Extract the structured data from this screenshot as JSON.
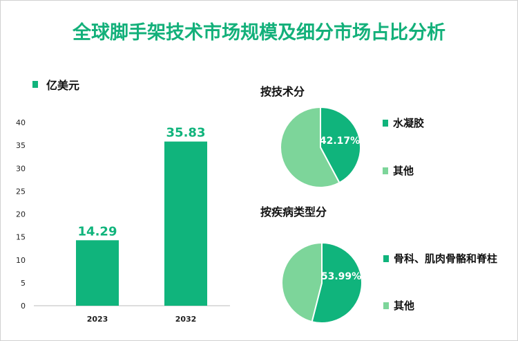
{
  "title": "全球脚手架技术市场规模及细分市场占比分析",
  "colors": {
    "primary": "#10b47c",
    "secondary": "#7dd59a",
    "title": "#13b07a"
  },
  "chart_data": [
    {
      "type": "bar",
      "legend": "亿美元",
      "categories": [
        "2023",
        "2032"
      ],
      "values": [
        14.29,
        35.83
      ],
      "value_labels": [
        "14.29",
        "35.83"
      ],
      "ylim": [
        0,
        40
      ],
      "yticks": [
        "0",
        "5",
        "10",
        "15",
        "20",
        "25",
        "30",
        "35",
        "40"
      ]
    },
    {
      "type": "pie",
      "title": "按技术分",
      "slices": [
        {
          "label": "水凝胶",
          "value": 42.17,
          "value_label": "42.17%"
        },
        {
          "label": "其他",
          "value": 57.83
        }
      ]
    },
    {
      "type": "pie",
      "title": "按疾病类型分",
      "slices": [
        {
          "label": "骨科、肌肉骨骼和脊柱",
          "value": 53.99,
          "value_label": "53.99%"
        },
        {
          "label": "其他",
          "value": 46.01
        }
      ]
    }
  ]
}
